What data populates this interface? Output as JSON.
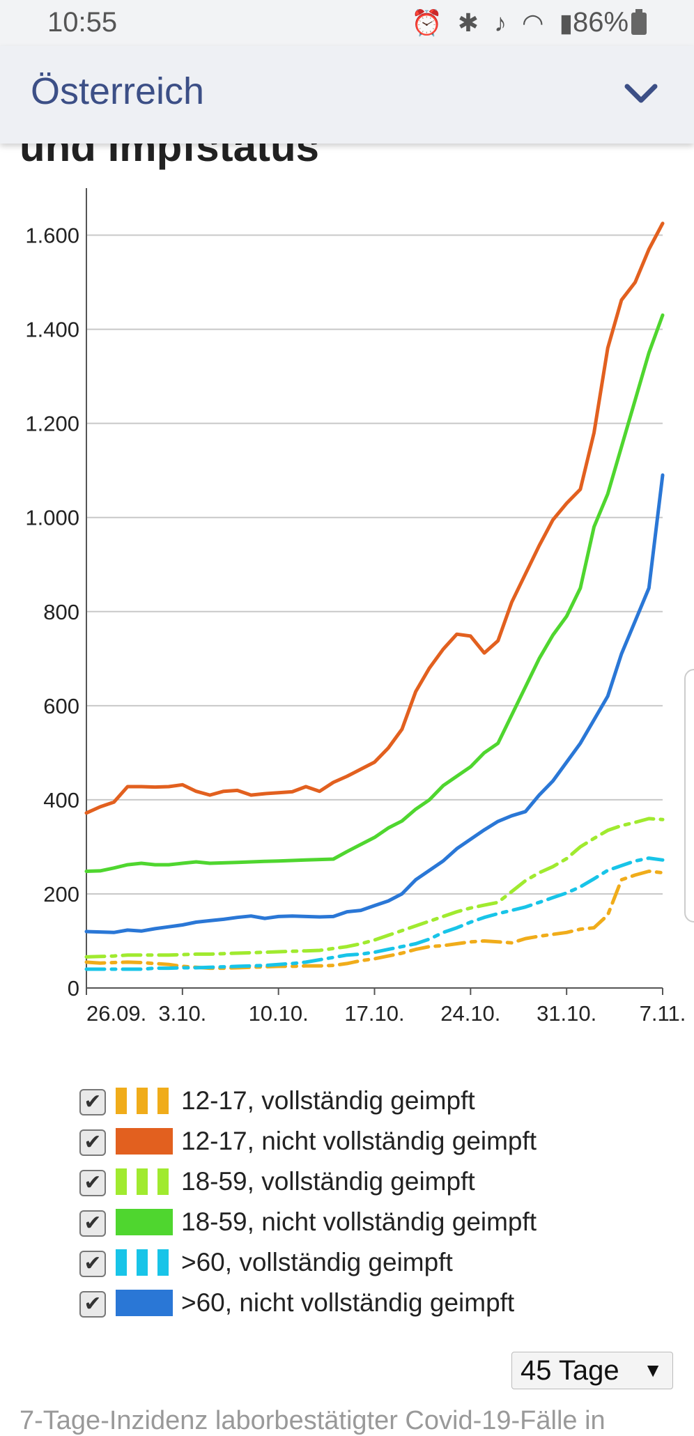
{
  "status_bar": {
    "time": "10:55",
    "icons": [
      "alarm-icon",
      "bluetooth-icon",
      "mute-icon",
      "wifi-icon",
      "signal-icon"
    ],
    "battery": "86%"
  },
  "header": {
    "title": "Österreich",
    "toggle_icon": "chevron-down-icon",
    "accent_color": "#3c4f86"
  },
  "section_title": "und Impfstatus",
  "chart_data": {
    "type": "line",
    "x": [
      "26.09.",
      "27.09.",
      "28.09.",
      "29.09.",
      "30.09.",
      "01.10.",
      "02.10.",
      "03.10.",
      "04.10.",
      "05.10.",
      "06.10.",
      "07.10.",
      "08.10.",
      "09.10.",
      "10.10.",
      "11.10.",
      "12.10.",
      "13.10.",
      "14.10.",
      "15.10.",
      "16.10.",
      "17.10.",
      "18.10.",
      "19.10.",
      "20.10.",
      "21.10.",
      "22.10.",
      "23.10.",
      "24.10.",
      "25.10.",
      "26.10.",
      "27.10.",
      "28.10.",
      "29.10.",
      "30.10.",
      "31.10.",
      "01.11.",
      "02.11.",
      "03.11.",
      "04.11.",
      "05.11.",
      "06.11.",
      "07.11."
    ],
    "x_ticks": [
      "26.09.",
      "3.10.",
      "10.10.",
      "17.10.",
      "24.10.",
      "31.10.",
      "7.11."
    ],
    "x_tick_index": [
      0,
      7,
      14,
      21,
      28,
      35,
      42
    ],
    "ylim": [
      0,
      1700
    ],
    "y_ticks": [
      0,
      200,
      400,
      600,
      800,
      1000,
      1200,
      1400,
      1600
    ],
    "y_tick_labels": [
      "0",
      "200",
      "400",
      "600",
      "800",
      "1.000",
      "1.200",
      "1.400",
      "1.600"
    ],
    "grid": "horizontal",
    "series": [
      {
        "name": "12-17, vollständig geimpft",
        "color": "#f0ac1a",
        "style": "dashed",
        "values": [
          55,
          53,
          54,
          55,
          54,
          52,
          50,
          46,
          44,
          42,
          42,
          43,
          44,
          45,
          46,
          46,
          47,
          47,
          48,
          52,
          58,
          62,
          68,
          74,
          82,
          88,
          90,
          94,
          98,
          100,
          98,
          96,
          105,
          110,
          114,
          118,
          125,
          128,
          155,
          230,
          240,
          248,
          245
        ]
      },
      {
        "name": "12-17, nicht vollständig geimpft",
        "color": "#e2601f",
        "style": "solid",
        "values": [
          372,
          385,
          395,
          428,
          428,
          427,
          428,
          432,
          418,
          410,
          418,
          420,
          410,
          413,
          415,
          417,
          428,
          418,
          437,
          450,
          465,
          480,
          510,
          550,
          630,
          680,
          720,
          752,
          748,
          712,
          738,
          820,
          880,
          940,
          995,
          1030,
          1060,
          1180,
          1360,
          1462,
          1500,
          1570,
          1625
        ]
      },
      {
        "name": "18-59, vollständig geimpft",
        "color": "#a0ea2f",
        "style": "dashed",
        "values": [
          66,
          67,
          68,
          70,
          70,
          70,
          70,
          71,
          72,
          72,
          73,
          74,
          75,
          76,
          77,
          78,
          79,
          80,
          84,
          88,
          94,
          102,
          112,
          122,
          132,
          142,
          152,
          162,
          170,
          176,
          182,
          205,
          228,
          245,
          258,
          275,
          300,
          318,
          335,
          345,
          352,
          360,
          358
        ]
      },
      {
        "name": "18-59, nicht vollständig geimpft",
        "color": "#4fd62f",
        "style": "solid",
        "values": [
          248,
          249,
          255,
          262,
          265,
          262,
          262,
          265,
          268,
          265,
          266,
          267,
          268,
          269,
          270,
          271,
          272,
          273,
          274,
          290,
          305,
          320,
          340,
          355,
          380,
          400,
          430,
          450,
          470,
          500,
          520,
          580,
          640,
          700,
          750,
          790,
          850,
          980,
          1050,
          1150,
          1250,
          1350,
          1430
        ]
      },
      {
        "name": ">60, vollständig geimpft",
        "color": "#18c4e8",
        "style": "dashed",
        "values": [
          40,
          40,
          40,
          40,
          40,
          42,
          42,
          43,
          43,
          44,
          45,
          46,
          47,
          48,
          50,
          52,
          55,
          60,
          65,
          70,
          72,
          76,
          82,
          88,
          94,
          104,
          118,
          128,
          140,
          150,
          158,
          165,
          172,
          182,
          192,
          202,
          215,
          232,
          250,
          260,
          270,
          276,
          272
        ]
      },
      {
        "name": ">60, nicht vollständig geimpft",
        "color": "#2a77d6",
        "style": "solid",
        "values": [
          120,
          119,
          118,
          123,
          121,
          126,
          130,
          134,
          140,
          143,
          146,
          150,
          153,
          148,
          152,
          153,
          152,
          151,
          152,
          162,
          165,
          175,
          185,
          200,
          230,
          250,
          270,
          296,
          316,
          336,
          354,
          366,
          375,
          410,
          440,
          480,
          520,
          570,
          620,
          710,
          780,
          850,
          1090
        ]
      }
    ]
  },
  "legend": [
    {
      "label": "12-17, vollständig geimpft",
      "checked": "✔"
    },
    {
      "label": "12-17, nicht vollständig geimpft",
      "checked": "✔"
    },
    {
      "label": "18-59, vollständig geimpft",
      "checked": "✔"
    },
    {
      "label": "18-59, nicht vollständig geimpft",
      "checked": "✔"
    },
    {
      "label": ">60, vollständig geimpft",
      "checked": "✔"
    },
    {
      "label": ">60, nicht vollständig geimpft",
      "checked": "✔"
    }
  ],
  "range_select": {
    "value": "45 Tage",
    "arrow": "▼"
  },
  "footer_text": "7-Tage-Inzidenz laborbestätigter Covid-19-Fälle in"
}
